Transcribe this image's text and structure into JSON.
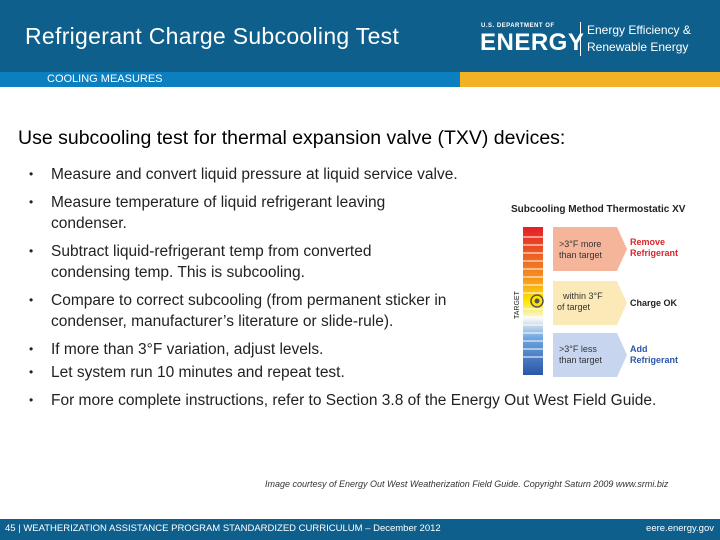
{
  "header": {
    "title": "Refrigerant Charge Subcooling Test",
    "logo_top": "U.S. DEPARTMENT OF",
    "logo_energy": "ENERGY",
    "logo_eere_line1": "Energy Efficiency &",
    "logo_eere_line2": "Renewable Energy"
  },
  "section_label": "COOLING MEASURES",
  "main_heading": "Use subcooling test for thermal expansion valve (TXV) devices:",
  "bullets": [
    "Measure and convert liquid pressure at liquid service valve.",
    "Measure temperature of liquid refrigerant leaving condenser.",
    "Subtract liquid-refrigerant temp from converted condensing temp. This is subcooling.",
    "Compare to correct subcooling (from permanent sticker in condenser, manufacturer’s literature or slide-rule).",
    "If more than 3°F variation, adjust levels.",
    "Let system run 10 minutes and repeat test.",
    "For more complete instructions, refer to Section 3.8 of the Energy Out West Field Guide."
  ],
  "figure": {
    "title": "Subcooling Method Thermostatic XV",
    "axis_label": "TARGET",
    "rows": [
      {
        "condition_line1": ">3°F more",
        "condition_line2": "than target",
        "action_line1": "Remove",
        "action_line2": "Refrigerant",
        "action_color": "#d9262c"
      },
      {
        "condition_line1": "within 3°F",
        "condition_line2": "of target",
        "action_line1": "Charge OK",
        "action_line2": "",
        "action_color": "#222222"
      },
      {
        "condition_line1": ">3°F less",
        "condition_line2": "than target",
        "action_line1": "Add",
        "action_line2": "Refrigerant",
        "action_color": "#2b56a8"
      }
    ]
  },
  "credit": "Image courtesy of Energy Out West Weatherization Field Guide. Copyright Saturn 2009 www.srmi.biz",
  "footer": {
    "left": "45 | WEATHERIZATION ASSISTANCE PROGRAM STANDARDIZED CURRICULUM – December 2012",
    "right": "eere.energy.gov"
  },
  "colors": {
    "header_blue": "#0f5f8d",
    "accent_gold": "#f3b225",
    "hot_red": "#d9262c",
    "cold_blue": "#2b56a8"
  }
}
